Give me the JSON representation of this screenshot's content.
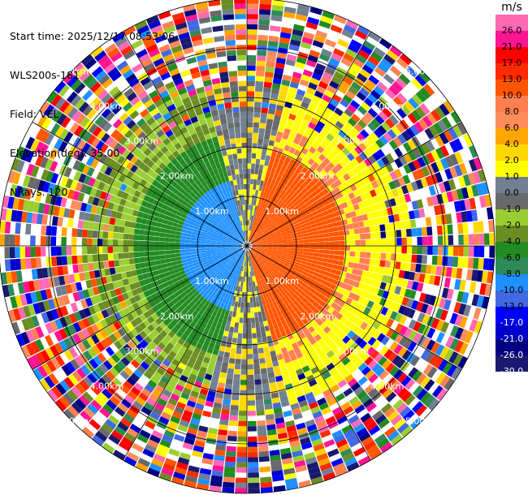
{
  "header": {
    "start_time": "Start time: 2025/12/17 08:53:06",
    "instrument": "WLS200s-181",
    "field": "Field: VEL",
    "elevation": "Elevation(deg): 35.00",
    "nrays": "NRays: 120"
  },
  "colorbar": {
    "unit": "m/s",
    "ticks": [
      "26.0",
      "21.0",
      "17.0",
      "13.0",
      "10.0",
      "8.0",
      "6.0",
      "4.0",
      "2.0",
      "1.0",
      "0.0",
      "-1.0",
      "-2.0",
      "-4.0",
      "-6.0",
      "-8.0",
      "-10.0",
      "-13.0",
      "-17.0",
      "-21.0",
      "-26.0",
      "-30.0"
    ],
    "colors": [
      "#ff69b4",
      "#ff1493",
      "#ff0000",
      "#ff2a00",
      "#ff5500",
      "#ff7f50",
      "#fd8c5a",
      "#ffa500",
      "#ffd700",
      "#ffff00",
      "#708090",
      "#696969",
      "#9acd32",
      "#6b8e23",
      "#228b22",
      "#2e8b57",
      "#1e90ff",
      "#4169e1",
      "#0000ff",
      "#0000cd",
      "#000080",
      "#191970"
    ]
  },
  "chart_data": {
    "type": "ppi",
    "field": "VEL",
    "units": "m/s",
    "elevation_deg": 35.0,
    "n_rays": 120,
    "max_range_km": 5.0,
    "range_rings_km": [
      1.0,
      2.0,
      3.0,
      4.0,
      5.0
    ],
    "ring_labels": [
      "1.00km",
      "2.00km",
      "3.00km",
      "4.00km",
      "5.00km"
    ],
    "spoke_azimuths_deg": [
      0,
      30,
      60,
      90,
      120,
      150,
      180,
      210,
      240,
      270,
      300,
      330
    ],
    "pattern": {
      "west_color_near": "#1e90ff",
      "west_color_mid": "#228b22",
      "east_color_near": "#ff5500",
      "east_color_mid": "#ffff00",
      "noise_start_km": 3.3
    }
  }
}
